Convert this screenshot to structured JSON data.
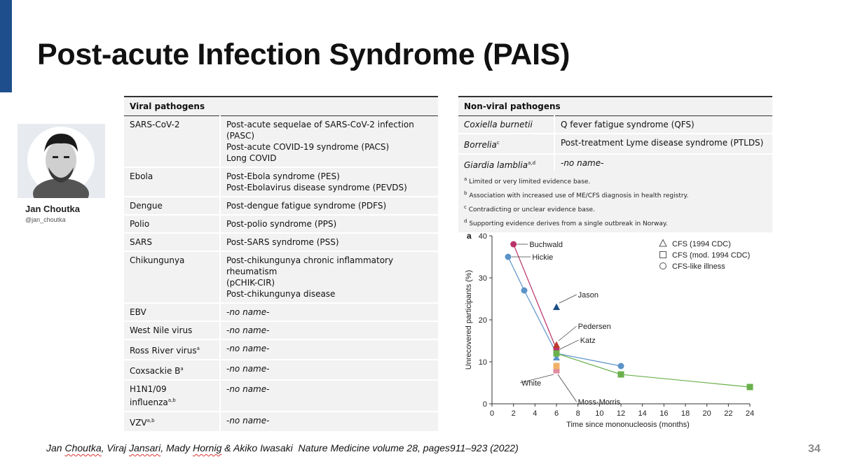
{
  "slide": {
    "title": "Post-acute Infection Syndrome (PAIS)",
    "page_number": "34",
    "accent_color": "#1f4e8c"
  },
  "presenter": {
    "name": "Jan Choutka",
    "handle": "@jan_choutka"
  },
  "viral_table": {
    "header": "Viral pathogens",
    "rows": [
      {
        "pathogen": "SARS-CoV-2",
        "syndromes": [
          "Post-acute sequelae of SARS-CoV-2 infection (PASC)",
          "Post-acute COVID-19 syndrome (PACS)",
          "Long COVID"
        ]
      },
      {
        "pathogen": "Ebola",
        "syndromes": [
          "Post-Ebola syndrome (PES)",
          "Post-Ebolavirus disease syndrome (PEVDS)"
        ]
      },
      {
        "pathogen": "Dengue",
        "syndromes": [
          "Post-dengue fatigue syndrome (PDFS)"
        ]
      },
      {
        "pathogen": "Polio",
        "syndromes": [
          "Post-polio syndrome (PPS)"
        ]
      },
      {
        "pathogen": "SARS",
        "syndromes": [
          "Post-SARS syndrome (PSS)"
        ]
      },
      {
        "pathogen": "Chikungunya",
        "syndromes": [
          "Post-chikungunya chronic inflammatory rheumatism",
          "(pCHIK-CIR)",
          "Post-chikungunya disease"
        ]
      },
      {
        "pathogen": "EBV",
        "syndromes": [
          "-no name-"
        ]
      },
      {
        "pathogen": "West Nile virus",
        "syndromes": [
          "-no name-"
        ]
      },
      {
        "pathogen": "Ross River virus",
        "sup": "a",
        "syndromes": [
          "-no name-"
        ]
      },
      {
        "pathogen": "Coxsackie B",
        "sup": "a",
        "syndromes": [
          "-no name-"
        ]
      },
      {
        "pathogen": "H1N1/09 influenza",
        "sup": "a,b",
        "syndromes": [
          "-no name-"
        ]
      },
      {
        "pathogen": "VZV",
        "sup": "a,b",
        "syndromes": [
          "-no name-"
        ]
      }
    ]
  },
  "nonviral_table": {
    "header": "Non-viral pathogens",
    "rows": [
      {
        "pathogen": "Coxiella burnetii",
        "sup": "",
        "syndrome": "Q fever fatigue syndrome (QFS)"
      },
      {
        "pathogen": "Borrelia",
        "sup": "c",
        "syndrome": "Post-treatment Lyme disease syndrome (PTLDS)"
      },
      {
        "pathogen": "Giardia lamblia",
        "sup": "a,d",
        "syndrome": "-no name-"
      }
    ],
    "footnotes": [
      {
        "mark": "a",
        "text": "Limited or very limited evidence base."
      },
      {
        "mark": "b",
        "text": "Association with increased use of ME/CFS diagnosis in health registry."
      },
      {
        "mark": "c",
        "text": "Contradicting or unclear evidence base."
      },
      {
        "mark": "d",
        "text": "Supporting evidence derives from a single outbreak in Norway."
      }
    ]
  },
  "citation": {
    "authors": [
      "Jan Choutka",
      "Viraj Jansari",
      "Mady Hornig",
      "Akiko Iwasaki"
    ],
    "rest": "  Nature Medicine volume 28, pages911–923 (2022)"
  },
  "chart_data": {
    "type": "scatter",
    "panel_label": "a",
    "xlabel": "Time since mononucleosis (months)",
    "ylabel": "Unrecovered participants (%)",
    "xlim": [
      0,
      24
    ],
    "ylim": [
      0,
      40
    ],
    "xticks": [
      0,
      2,
      4,
      6,
      8,
      10,
      12,
      14,
      16,
      18,
      20,
      22,
      24
    ],
    "yticks": [
      0,
      10,
      20,
      30,
      40
    ],
    "legend_position": "top-right",
    "legend": [
      {
        "marker": "triangle",
        "label": "CFS (1994 CDC)"
      },
      {
        "marker": "square",
        "label": "CFS (mod. 1994 CDC)"
      },
      {
        "marker": "circle",
        "label": "CFS-like illness"
      }
    ],
    "series": [
      {
        "name": "Buchwald",
        "marker": "circle",
        "color": "#b8336a",
        "points": [
          [
            2,
            38
          ],
          [
            6,
            13
          ]
        ]
      },
      {
        "name": "Hickie",
        "marker": "circle",
        "color": "#5b93c8",
        "points": [
          [
            1.5,
            35
          ],
          [
            3,
            27
          ],
          [
            6,
            12
          ],
          [
            12,
            9
          ]
        ]
      },
      {
        "name": "Jason",
        "marker": "triangle",
        "color": "#1d4f86",
        "points": [
          [
            6,
            23
          ]
        ]
      },
      {
        "name": "Pedersen",
        "marker": "triangle",
        "color": "#c0392b",
        "points": [
          [
            6,
            14
          ]
        ]
      },
      {
        "name": "Katz",
        "marker": "circle",
        "color": "#7a9a3a",
        "points": [
          [
            6,
            12
          ]
        ]
      },
      {
        "name": "White",
        "marker": "square",
        "color": "#f0b26a",
        "points": [
          [
            6,
            9
          ]
        ]
      },
      {
        "name": "Moss-Morris",
        "marker": "square",
        "color": "#6ab04c",
        "points": [
          [
            6,
            12
          ],
          [
            12,
            7
          ],
          [
            24,
            4
          ]
        ]
      }
    ],
    "extra_marks": [
      {
        "marker": "triangle",
        "color": "#5b93c8",
        "x": 6,
        "y": 11
      },
      {
        "marker": "square",
        "color": "#e08aa0",
        "x": 6,
        "y": 8
      }
    ]
  }
}
